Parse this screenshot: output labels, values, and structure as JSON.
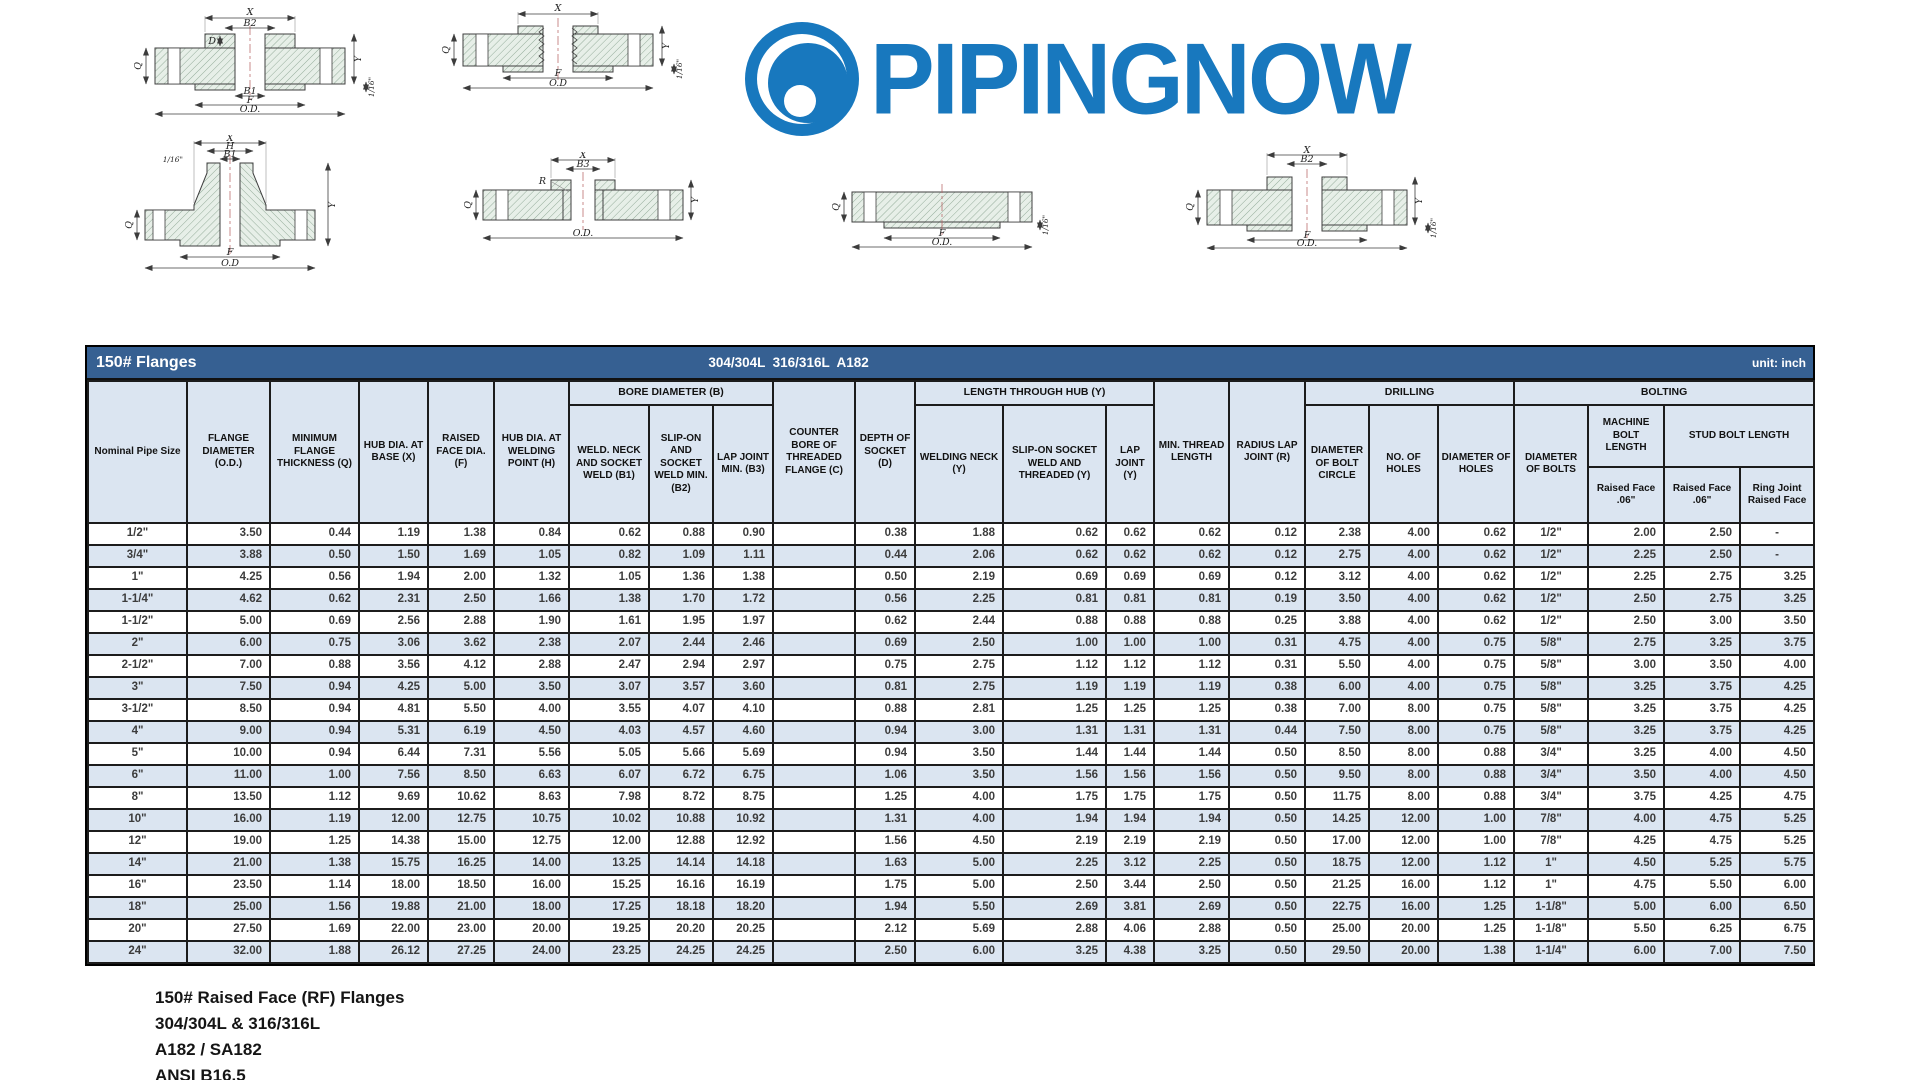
{
  "logo": {
    "text": "PIPINGNOW",
    "color": "#1878be"
  },
  "table": {
    "title": "150# Flanges",
    "subtitle": "304/304L  316/316L  A182",
    "unit": "unit: inch",
    "groups": {
      "bore": "BORE DIAMETER (B)",
      "hub": "LENGTH THROUGH HUB (Y)",
      "drilling": "DRILLING",
      "bolting": "BOLTING"
    },
    "header": {
      "nominal": "Nominal Pipe Size",
      "od": "FLANGE DIAMETER (O.D.)",
      "q": "MINIMUM FLANGE THICKNESS (Q)",
      "x": "HUB DIA. AT BASE (X)",
      "f": "RAISED FACE DIA. (F)",
      "h": "HUB DIA. AT WELDING POINT (H)",
      "b1": "WELD. NECK AND SOCKET WELD (B1)",
      "b2": "SLIP-ON AND SOCKET WELD MIN. (B2)",
      "b3": "LAP JOINT MIN. (B3)",
      "c": "COUNTER BORE OF THREADED FLANGE (C)",
      "d": "DEPTH OF SOCKET (D)",
      "y_wn": "WELDING NECK (Y)",
      "y_so": "SLIP-ON SOCKET WELD AND THREADED (Y)",
      "y_lj": "LAP JOINT (Y)",
      "min_thread": "MIN. THREAD LENGTH",
      "radius": "RADIUS LAP JOINT (R)",
      "bolt_circle": "DIAMETER OF BOLT CIRCLE",
      "num_holes": "NO. OF HOLES",
      "hole_dia": "DIAMETER OF HOLES",
      "bolt_dia": "DIAMETER OF BOLTS",
      "machine_bolt": "MACHINE BOLT LENGTH",
      "stud_bolt": "STUD BOLT LENGTH",
      "rf06_machine": "Raised Face .06\"",
      "rf06_stud": "Raised Face .06\"",
      "ring_joint": "Ring Joint Raised Face"
    },
    "rows": [
      [
        "1/2\"",
        "3.50",
        "0.44",
        "1.19",
        "1.38",
        "0.84",
        "0.62",
        "0.88",
        "0.90",
        "",
        "0.38",
        "1.88",
        "0.62",
        "0.62",
        "0.62",
        "0.12",
        "2.38",
        "4.00",
        "0.62",
        "1/2\"",
        "2.00",
        "2.50",
        "-"
      ],
      [
        "3/4\"",
        "3.88",
        "0.50",
        "1.50",
        "1.69",
        "1.05",
        "0.82",
        "1.09",
        "1.11",
        "",
        "0.44",
        "2.06",
        "0.62",
        "0.62",
        "0.62",
        "0.12",
        "2.75",
        "4.00",
        "0.62",
        "1/2\"",
        "2.25",
        "2.50",
        "-"
      ],
      [
        "1\"",
        "4.25",
        "0.56",
        "1.94",
        "2.00",
        "1.32",
        "1.05",
        "1.36",
        "1.38",
        "",
        "0.50",
        "2.19",
        "0.69",
        "0.69",
        "0.69",
        "0.12",
        "3.12",
        "4.00",
        "0.62",
        "1/2\"",
        "2.25",
        "2.75",
        "3.25"
      ],
      [
        "1-1/4\"",
        "4.62",
        "0.62",
        "2.31",
        "2.50",
        "1.66",
        "1.38",
        "1.70",
        "1.72",
        "",
        "0.56",
        "2.25",
        "0.81",
        "0.81",
        "0.81",
        "0.19",
        "3.50",
        "4.00",
        "0.62",
        "1/2\"",
        "2.50",
        "2.75",
        "3.25"
      ],
      [
        "1-1/2\"",
        "5.00",
        "0.69",
        "2.56",
        "2.88",
        "1.90",
        "1.61",
        "1.95",
        "1.97",
        "",
        "0.62",
        "2.44",
        "0.88",
        "0.88",
        "0.88",
        "0.25",
        "3.88",
        "4.00",
        "0.62",
        "1/2\"",
        "2.50",
        "3.00",
        "3.50"
      ],
      [
        "2\"",
        "6.00",
        "0.75",
        "3.06",
        "3.62",
        "2.38",
        "2.07",
        "2.44",
        "2.46",
        "",
        "0.69",
        "2.50",
        "1.00",
        "1.00",
        "1.00",
        "0.31",
        "4.75",
        "4.00",
        "0.75",
        "5/8\"",
        "2.75",
        "3.25",
        "3.75"
      ],
      [
        "2-1/2\"",
        "7.00",
        "0.88",
        "3.56",
        "4.12",
        "2.88",
        "2.47",
        "2.94",
        "2.97",
        "",
        "0.75",
        "2.75",
        "1.12",
        "1.12",
        "1.12",
        "0.31",
        "5.50",
        "4.00",
        "0.75",
        "5/8\"",
        "3.00",
        "3.50",
        "4.00"
      ],
      [
        "3\"",
        "7.50",
        "0.94",
        "4.25",
        "5.00",
        "3.50",
        "3.07",
        "3.57",
        "3.60",
        "",
        "0.81",
        "2.75",
        "1.19",
        "1.19",
        "1.19",
        "0.38",
        "6.00",
        "4.00",
        "0.75",
        "5/8\"",
        "3.25",
        "3.75",
        "4.25"
      ],
      [
        "3-1/2\"",
        "8.50",
        "0.94",
        "4.81",
        "5.50",
        "4.00",
        "3.55",
        "4.07",
        "4.10",
        "",
        "0.88",
        "2.81",
        "1.25",
        "1.25",
        "1.25",
        "0.38",
        "7.00",
        "8.00",
        "0.75",
        "5/8\"",
        "3.25",
        "3.75",
        "4.25"
      ],
      [
        "4\"",
        "9.00",
        "0.94",
        "5.31",
        "6.19",
        "4.50",
        "4.03",
        "4.57",
        "4.60",
        "",
        "0.94",
        "3.00",
        "1.31",
        "1.31",
        "1.31",
        "0.44",
        "7.50",
        "8.00",
        "0.75",
        "5/8\"",
        "3.25",
        "3.75",
        "4.25"
      ],
      [
        "5\"",
        "10.00",
        "0.94",
        "6.44",
        "7.31",
        "5.56",
        "5.05",
        "5.66",
        "5.69",
        "",
        "0.94",
        "3.50",
        "1.44",
        "1.44",
        "1.44",
        "0.50",
        "8.50",
        "8.00",
        "0.88",
        "3/4\"",
        "3.25",
        "4.00",
        "4.50"
      ],
      [
        "6\"",
        "11.00",
        "1.00",
        "7.56",
        "8.50",
        "6.63",
        "6.07",
        "6.72",
        "6.75",
        "",
        "1.06",
        "3.50",
        "1.56",
        "1.56",
        "1.56",
        "0.50",
        "9.50",
        "8.00",
        "0.88",
        "3/4\"",
        "3.50",
        "4.00",
        "4.50"
      ],
      [
        "8\"",
        "13.50",
        "1.12",
        "9.69",
        "10.62",
        "8.63",
        "7.98",
        "8.72",
        "8.75",
        "",
        "1.25",
        "4.00",
        "1.75",
        "1.75",
        "1.75",
        "0.50",
        "11.75",
        "8.00",
        "0.88",
        "3/4\"",
        "3.75",
        "4.25",
        "4.75"
      ],
      [
        "10\"",
        "16.00",
        "1.19",
        "12.00",
        "12.75",
        "10.75",
        "10.02",
        "10.88",
        "10.92",
        "",
        "1.31",
        "4.00",
        "1.94",
        "1.94",
        "1.94",
        "0.50",
        "14.25",
        "12.00",
        "1.00",
        "7/8\"",
        "4.00",
        "4.75",
        "5.25"
      ],
      [
        "12\"",
        "19.00",
        "1.25",
        "14.38",
        "15.00",
        "12.75",
        "12.00",
        "12.88",
        "12.92",
        "",
        "1.56",
        "4.50",
        "2.19",
        "2.19",
        "2.19",
        "0.50",
        "17.00",
        "12.00",
        "1.00",
        "7/8\"",
        "4.25",
        "4.75",
        "5.25"
      ],
      [
        "14\"",
        "21.00",
        "1.38",
        "15.75",
        "16.25",
        "14.00",
        "13.25",
        "14.14",
        "14.18",
        "",
        "1.63",
        "5.00",
        "2.25",
        "3.12",
        "2.25",
        "0.50",
        "18.75",
        "12.00",
        "1.12",
        "1\"",
        "4.50",
        "5.25",
        "5.75"
      ],
      [
        "16\"",
        "23.50",
        "1.14",
        "18.00",
        "18.50",
        "16.00",
        "15.25",
        "16.16",
        "16.19",
        "",
        "1.75",
        "5.00",
        "2.50",
        "3.44",
        "2.50",
        "0.50",
        "21.25",
        "16.00",
        "1.12",
        "1\"",
        "4.75",
        "5.50",
        "6.00"
      ],
      [
        "18\"",
        "25.00",
        "1.56",
        "19.88",
        "21.00",
        "18.00",
        "17.25",
        "18.18",
        "18.20",
        "",
        "1.94",
        "5.50",
        "2.69",
        "3.81",
        "2.69",
        "0.50",
        "22.75",
        "16.00",
        "1.25",
        "1-1/8\"",
        "5.00",
        "6.00",
        "6.50"
      ],
      [
        "20\"",
        "27.50",
        "1.69",
        "22.00",
        "23.00",
        "20.00",
        "19.25",
        "20.20",
        "20.25",
        "",
        "2.12",
        "5.69",
        "2.88",
        "4.06",
        "2.88",
        "0.50",
        "25.00",
        "20.00",
        "1.25",
        "1-1/8\"",
        "5.50",
        "6.25",
        "6.75"
      ],
      [
        "24\"",
        "32.00",
        "1.88",
        "26.12",
        "27.25",
        "24.00",
        "23.25",
        "24.25",
        "24.25",
        "",
        "2.50",
        "6.00",
        "3.25",
        "4.38",
        "3.25",
        "0.50",
        "29.50",
        "20.00",
        "1.38",
        "1-1/4\"",
        "6.00",
        "7.00",
        "7.50"
      ]
    ]
  },
  "footer": {
    "lines": [
      "150# Raised Face (RF) Flanges",
      "304/304L & 316/316L",
      "A182 / SA182",
      "ANSI B16.5"
    ]
  },
  "drawings": [
    {
      "name": "socket weld flange",
      "labels": {
        "x": "X",
        "b2": "B2",
        "d": "D",
        "b1": "B1",
        "f": "F",
        "od": "O.D.",
        "q": "Q",
        "y": "Y",
        "s16": "1/16\""
      }
    },
    {
      "name": "threaded flange",
      "labels": {
        "x": "X",
        "f": "F",
        "od": "O.D",
        "q": "Q",
        "y": "Y",
        "s16": "1/16\""
      }
    },
    {
      "name": "weld neck flange",
      "labels": {
        "x": "X",
        "h": "H",
        "b1": "B1",
        "q": "Q",
        "f": "F",
        "od": "O.D",
        "y": "Y",
        "s16": "1/16\""
      }
    },
    {
      "name": "lap joint flange",
      "labels": {
        "x": "X",
        "b3": "B3",
        "q": "Q",
        "r": "R",
        "od": "O.D.",
        "y": "Y"
      }
    },
    {
      "name": "blind flange",
      "labels": {
        "q": "Q",
        "f": "F",
        "od": "O.D.",
        "s16": "1/16\""
      }
    },
    {
      "name": "slip-on flange",
      "labels": {
        "x": "X",
        "b2": "B2",
        "q": "Q",
        "f": "F",
        "od": "O.D.",
        "y": "Y",
        "s16": "1/16\""
      }
    }
  ]
}
